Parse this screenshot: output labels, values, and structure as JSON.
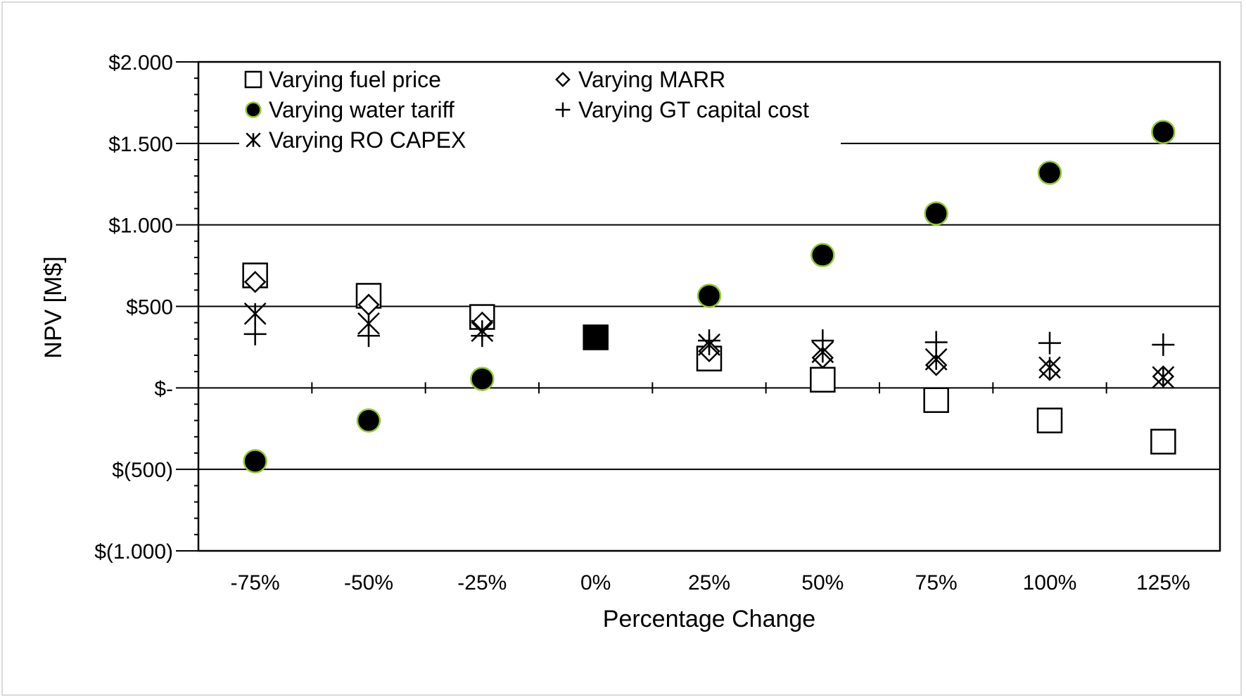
{
  "chart_data": {
    "type": "scatter",
    "title": "",
    "xlabel": "Percentage Change",
    "ylabel": "NPV [M$]",
    "categories": [
      "-75%",
      "-50%",
      "-25%",
      "0%",
      "25%",
      "50%",
      "75%",
      "100%",
      "125%"
    ],
    "ylim": [
      -1000,
      2000
    ],
    "y_tick_values": [
      -1000,
      -500,
      0,
      500,
      1000,
      1500,
      2000
    ],
    "y_tick_labels": [
      "$(1.000)",
      "$(500)",
      "$-",
      "$500",
      "$1.000",
      "$1.500",
      "$2.000"
    ],
    "gridlines": "horizontal major",
    "legend_position": "top-left inside plot",
    "series": [
      {
        "name": "Varying fuel price",
        "marker": "square-open",
        "color": "#000000",
        "values": [
          690,
          565,
          435,
          310,
          180,
          50,
          -75,
          -200,
          -330
        ]
      },
      {
        "name": "Varying MARR",
        "marker": "diamond-open",
        "color": "#000000",
        "values": [
          650,
          510,
          400,
          310,
          225,
          185,
          140,
          110,
          70
        ]
      },
      {
        "name": "Varying water tariff",
        "marker": "circle-filled",
        "color": "#000000",
        "edge_color": "#92c83e",
        "values": [
          -450,
          -200,
          55,
          310,
          565,
          815,
          1070,
          1320,
          1570
        ]
      },
      {
        "name": "Varying GT capital cost",
        "marker": "plus",
        "color": "#000000",
        "values": [
          330,
          320,
          320,
          310,
          290,
          290,
          280,
          275,
          265
        ]
      },
      {
        "name": "Varying RO CAPEX",
        "marker": "asterisk",
        "color": "#000000",
        "values": [
          455,
          395,
          350,
          310,
          265,
          220,
          175,
          125,
          65
        ]
      }
    ]
  }
}
